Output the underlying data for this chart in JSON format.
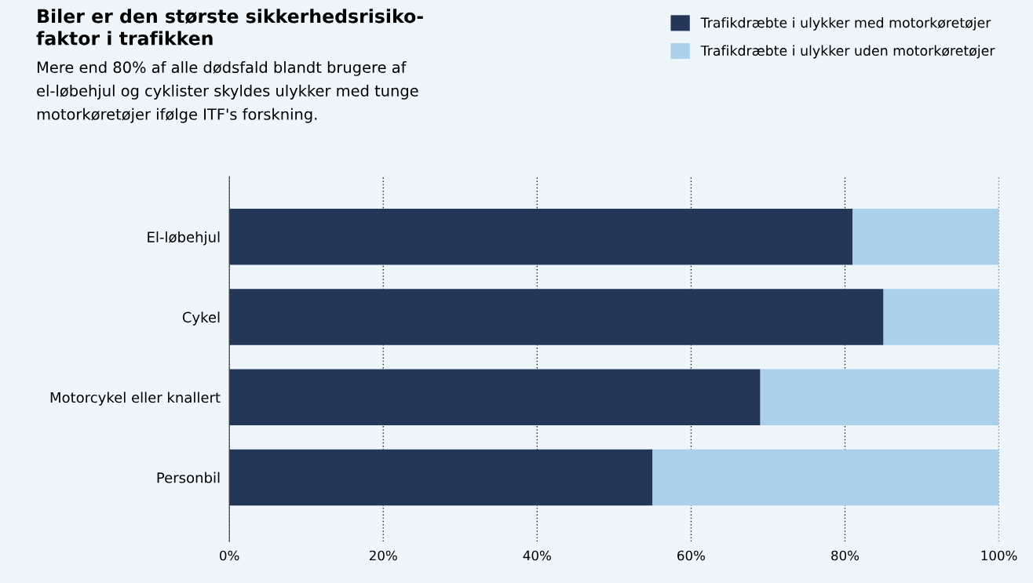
{
  "chart_data": {
    "type": "bar",
    "orientation": "horizontal",
    "stacked": true,
    "title": "Biler er den største sikkerhedsrisiko-\nfaktor i trafikken",
    "subtitle": "Mere end 80% af alle dødsfald blandt brugere af\nel-løbehjul og cyklister skyldes ulykker med tunge\nmotorkøretøjer ifølge ITF's forskning.",
    "categories": [
      "El-løbehjul",
      "Cykel",
      "Motorcykel eller knallert",
      "Personbil"
    ],
    "series": [
      {
        "name": "Trafikdræbte i ulykker med motorkøretøjer",
        "color": "#253759",
        "values": [
          81,
          85,
          69,
          55
        ]
      },
      {
        "name": "Trafikdræbte i ulykker uden motorkøretøjer",
        "color": "#abd0ea",
        "values": [
          19,
          15,
          31,
          45
        ]
      }
    ],
    "xlim": [
      0,
      100
    ],
    "xticks": [
      {
        "value": 0,
        "label": "0%"
      },
      {
        "value": 20,
        "label": "20%"
      },
      {
        "value": 40,
        "label": "40%"
      },
      {
        "value": 60,
        "label": "60%"
      },
      {
        "value": 80,
        "label": "80%"
      },
      {
        "value": 100,
        "label": "100%"
      }
    ],
    "grid": "x",
    "legend": "top right"
  }
}
